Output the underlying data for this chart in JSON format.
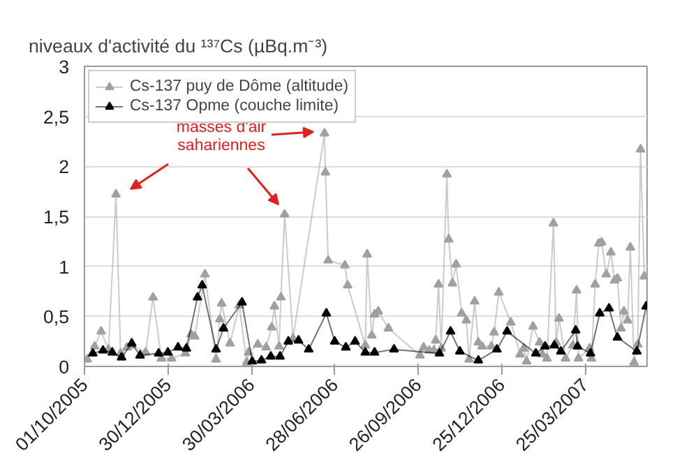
{
  "chart_data": {
    "type": "line",
    "ylabel": "niveaux d'activité du ¹³⁷Cs (µBq.m⁻³)",
    "xlim": [
      "2005-10-01",
      "2007-05-31"
    ],
    "xticks": [
      {
        "value": "2005-10-01",
        "label": "01/10/2005"
      },
      {
        "value": "2005-12-30",
        "label": "30/12/2005"
      },
      {
        "value": "2006-03-30",
        "label": "30/03/2006"
      },
      {
        "value": "2006-06-28",
        "label": "28/06/2006"
      },
      {
        "value": "2006-09-26",
        "label": "26/09/2006"
      },
      {
        "value": "2006-12-25",
        "label": "25/12/2006"
      },
      {
        "value": "2007-03-25",
        "label": "25/03/2007"
      }
    ],
    "ylim": [
      0,
      3
    ],
    "yticks": [
      0,
      {
        "value": 0.5,
        "label": "0,5"
      },
      1,
      {
        "value": 1.5,
        "label": "1,5"
      },
      2,
      {
        "value": 2.5,
        "label": "2,5"
      },
      3
    ],
    "grid": "y",
    "legend": "top left",
    "marker": "triangle",
    "line_style": "solid",
    "annotations": [
      "masses d'air\nsahariennes"
    ],
    "series": [
      {
        "name": "Cs-137 puy de Dôme (altitude)",
        "color": "#a0a0a0",
        "x": [
          "2005-10-04",
          "2005-10-12",
          "2005-10-19",
          "2005-10-27",
          "2005-11-04",
          "2005-11-09",
          "2005-11-16",
          "2005-11-21",
          "2005-12-06",
          "2005-12-14",
          "2005-12-23",
          "2006-01-03",
          "2006-01-18",
          "2006-01-24",
          "2006-01-28",
          "2006-02-08",
          "2006-02-20",
          "2006-02-24",
          "2006-02-26",
          "2006-03-07",
          "2006-03-17",
          "2006-03-25",
          "2006-03-27",
          "2006-04-06",
          "2006-04-15",
          "2006-04-21",
          "2006-04-24",
          "2006-04-29",
          "2006-05-01",
          "2006-05-05",
          "2006-05-14",
          "2006-06-17",
          "2006-06-18",
          "2006-06-21",
          "2006-07-09",
          "2006-07-12",
          "2006-07-31",
          "2006-08-02",
          "2006-08-07",
          "2006-08-10",
          "2006-08-14",
          "2006-08-25",
          "2006-09-28",
          "2006-10-02",
          "2006-10-08",
          "2006-10-13",
          "2006-10-15",
          "2006-10-18",
          "2006-10-21",
          "2006-10-27",
          "2006-10-29",
          "2006-11-02",
          "2006-11-06",
          "2006-11-12",
          "2006-11-17",
          "2006-11-20",
          "2006-11-26",
          "2006-11-30",
          "2006-12-04",
          "2006-12-14",
          "2006-12-17",
          "2006-12-22",
          "2007-01-04",
          "2007-01-14",
          "2007-01-18",
          "2007-01-21",
          "2007-01-28",
          "2007-02-04",
          "2007-02-07",
          "2007-02-12",
          "2007-02-19",
          "2007-02-22",
          "2007-02-25",
          "2007-03-04",
          "2007-03-12",
          "2007-03-16",
          "2007-03-18",
          "2007-03-30",
          "2007-04-01",
          "2007-04-05",
          "2007-04-09",
          "2007-04-12",
          "2007-04-17",
          "2007-04-22",
          "2007-04-26",
          "2007-04-29",
          "2007-05-03",
          "2007-05-06",
          "2007-05-10",
          "2007-05-13",
          "2007-05-17",
          "2007-05-21",
          "2007-05-24",
          "2007-05-28"
        ],
        "values": [
          0.07,
          0.2,
          0.35,
          0.17,
          1.72,
          0.13,
          0.19,
          0.21,
          0.14,
          0.69,
          0.08,
          0.08,
          0.13,
          0.32,
          0.3,
          0.92,
          0.07,
          0.47,
          0.63,
          0.23,
          0.61,
          0.04,
          0.14,
          0.22,
          0.19,
          0.39,
          0.6,
          0.2,
          0.69,
          1.52,
          0.28,
          2.33,
          1.94,
          1.06,
          1.01,
          0.81,
          0.21,
          1.12,
          0.31,
          0.52,
          0.55,
          0.38,
          0.11,
          0.19,
          0.16,
          0.16,
          0.26,
          0.82,
          0.18,
          1.92,
          1.27,
          0.83,
          1.02,
          0.53,
          0.46,
          0.07,
          0.65,
          0.24,
          0.2,
          0.2,
          0.34,
          0.74,
          0.44,
          0.12,
          0.18,
          0.05,
          0.4,
          0.24,
          0.12,
          0.08,
          1.43,
          0.24,
          0.48,
          0.08,
          0.21,
          0.76,
          0.08,
          0.18,
          0.08,
          0.82,
          1.23,
          1.24,
          0.92,
          1.14,
          0.86,
          0.88,
          0.38,
          0.55,
          0.46,
          1.19,
          0.04,
          0.22,
          2.17,
          0.9
        ]
      },
      {
        "name": "Cs-137 Opme (couche limite)",
        "color": "#000000",
        "x": [
          "2005-10-10",
          "2005-10-21",
          "2005-10-31",
          "2005-11-10",
          "2005-11-21",
          "2005-11-30",
          "2005-12-20",
          "2005-12-30",
          "2006-01-10",
          "2006-01-19",
          "2006-01-31",
          "2006-02-05",
          "2006-02-20",
          "2006-02-28",
          "2006-03-20",
          "2006-03-31",
          "2006-04-10",
          "2006-04-20",
          "2006-04-30",
          "2006-05-09",
          "2006-05-20",
          "2006-05-31",
          "2006-06-19",
          "2006-06-28",
          "2006-07-10",
          "2006-07-20",
          "2006-07-31",
          "2006-08-10",
          "2006-08-31",
          "2006-10-19",
          "2006-10-31",
          "2006-11-10",
          "2006-11-30",
          "2006-12-20",
          "2006-12-31",
          "2007-01-31",
          "2007-02-10",
          "2007-02-20",
          "2007-02-27",
          "2007-03-15",
          "2007-03-17",
          "2007-03-31",
          "2007-04-10",
          "2007-04-20",
          "2007-04-29",
          "2007-05-20",
          "2007-05-30"
        ],
        "values": [
          0.13,
          0.16,
          0.14,
          0.09,
          0.23,
          0.11,
          0.13,
          0.14,
          0.19,
          0.18,
          0.69,
          0.81,
          0.17,
          0.38,
          0.64,
          0.05,
          0.06,
          0.1,
          0.1,
          0.25,
          0.26,
          0.17,
          0.53,
          0.25,
          0.19,
          0.25,
          0.14,
          0.14,
          0.17,
          0.13,
          0.35,
          0.15,
          0.06,
          0.17,
          0.35,
          0.13,
          0.2,
          0.21,
          0.15,
          0.36,
          0.2,
          0.13,
          0.53,
          0.58,
          0.29,
          0.15,
          0.6
        ]
      }
    ]
  }
}
